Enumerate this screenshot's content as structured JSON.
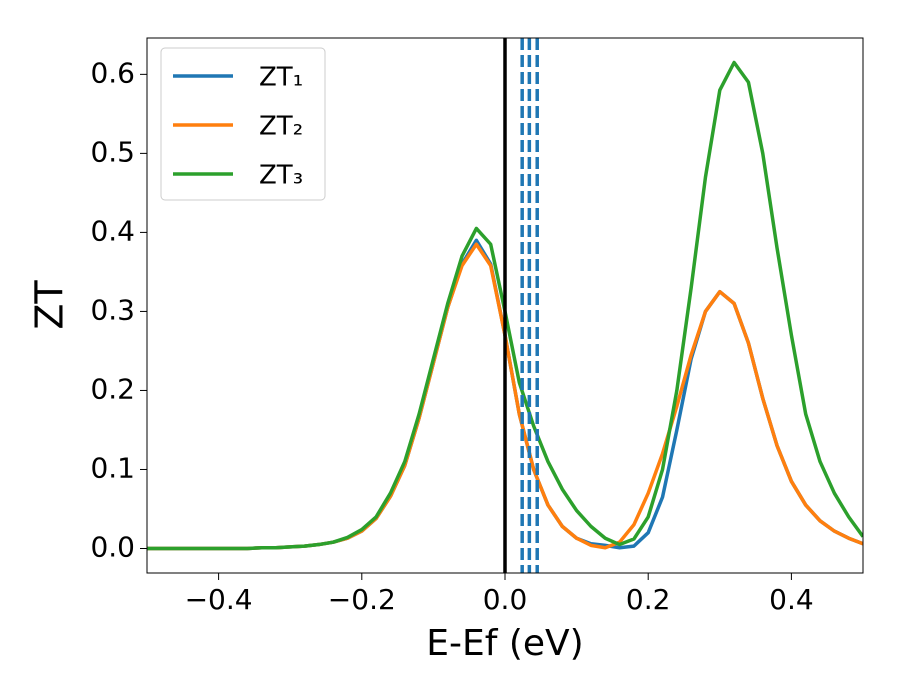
{
  "chart_data": {
    "type": "line",
    "xlabel": "E-Ef (eV)",
    "ylabel": "ZT",
    "x": [
      -0.5,
      -0.48,
      -0.46,
      -0.44,
      -0.42,
      -0.4,
      -0.38,
      -0.36,
      -0.34,
      -0.32,
      -0.3,
      -0.28,
      -0.26,
      -0.24,
      -0.22,
      -0.2,
      -0.18,
      -0.16,
      -0.14,
      -0.12,
      -0.1,
      -0.08,
      -0.06,
      -0.04,
      -0.02,
      0.0,
      0.02,
      0.04,
      0.06,
      0.08,
      0.1,
      0.12,
      0.14,
      0.16,
      0.18,
      0.2,
      0.22,
      0.24,
      0.26,
      0.28,
      0.3,
      0.32,
      0.34,
      0.36,
      0.38,
      0.4,
      0.42,
      0.44,
      0.46,
      0.48,
      0.5
    ],
    "series": [
      {
        "name": "ZT₁",
        "color": "#1f77b4",
        "values": [
          0,
          0,
          0,
          0,
          0,
          0,
          0,
          0,
          0.001,
          0.001,
          0.002,
          0.003,
          0.005,
          0.008,
          0.013,
          0.022,
          0.038,
          0.066,
          0.105,
          0.165,
          0.235,
          0.305,
          0.36,
          0.39,
          0.36,
          0.27,
          0.17,
          0.1,
          0.055,
          0.028,
          0.013,
          0.006,
          0.004,
          0.001,
          0.003,
          0.02,
          0.065,
          0.15,
          0.24,
          0.3,
          0.325,
          0.31,
          0.26,
          0.19,
          0.13,
          0.085,
          0.055,
          0.035,
          0.022,
          0.013,
          0.006
        ]
      },
      {
        "name": "ZT₂",
        "color": "#ff7f0e",
        "values": [
          0,
          0,
          0,
          0,
          0,
          0,
          0,
          0,
          0.001,
          0.001,
          0.002,
          0.003,
          0.005,
          0.008,
          0.013,
          0.022,
          0.038,
          0.066,
          0.105,
          0.165,
          0.235,
          0.305,
          0.358,
          0.385,
          0.358,
          0.27,
          0.17,
          0.1,
          0.055,
          0.028,
          0.013,
          0.004,
          0.001,
          0.008,
          0.03,
          0.07,
          0.12,
          0.18,
          0.245,
          0.3,
          0.325,
          0.31,
          0.26,
          0.19,
          0.13,
          0.085,
          0.055,
          0.035,
          0.022,
          0.013,
          0.006
        ]
      },
      {
        "name": "ZT₃",
        "color": "#2ca02c",
        "values": [
          0,
          0,
          0,
          0,
          0,
          0,
          0,
          0,
          0.001,
          0.001,
          0.002,
          0.003,
          0.005,
          0.008,
          0.014,
          0.024,
          0.04,
          0.07,
          0.11,
          0.17,
          0.24,
          0.31,
          0.37,
          0.405,
          0.385,
          0.3,
          0.21,
          0.155,
          0.11,
          0.075,
          0.048,
          0.028,
          0.013,
          0.005,
          0.012,
          0.04,
          0.1,
          0.2,
          0.33,
          0.47,
          0.58,
          0.615,
          0.59,
          0.5,
          0.38,
          0.27,
          0.17,
          0.11,
          0.07,
          0.04,
          0.015
        ]
      }
    ],
    "vlines": [
      {
        "x": 0,
        "color": "#000000",
        "dashed": false
      },
      {
        "x": 0.024,
        "color": "#1f77b4",
        "dashed": true
      },
      {
        "x": 0.034,
        "color": "#1f77b4",
        "dashed": true
      },
      {
        "x": 0.045,
        "color": "#1f77b4",
        "dashed": true
      }
    ],
    "xlim": [
      -0.5,
      0.5
    ],
    "xticks": [
      {
        "value": -0.4,
        "label": "−0.4"
      },
      {
        "value": -0.2,
        "label": "−0.2"
      },
      {
        "value": 0,
        "label": "0.0"
      },
      0.2,
      0.4
    ],
    "ylim": [
      -0.031,
      0.646
    ],
    "yticks": [
      {
        "value": 0,
        "label": "0.0"
      },
      0.1,
      0.2,
      0.3,
      0.4,
      0.5,
      0.6
    ],
    "legend": "upper left"
  }
}
